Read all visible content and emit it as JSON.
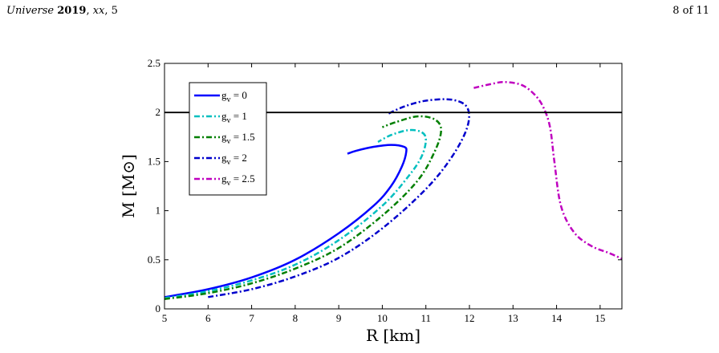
{
  "header": {
    "journal": "Universe",
    "year": "2019",
    "volume": "xx",
    "issue": "5",
    "page": "8 of 11"
  },
  "chart_data": {
    "type": "line",
    "title": "",
    "xlabel": "R [km]",
    "ylabel": "M [M⊙]",
    "xlim": [
      5,
      15.5
    ],
    "ylim": [
      0,
      2.5
    ],
    "xticks": [
      5,
      6,
      7,
      8,
      9,
      10,
      11,
      12,
      13,
      14,
      15
    ],
    "yticks": [
      0,
      0.5,
      1,
      1.5,
      2,
      2.5
    ],
    "grid": false,
    "legend_position": "top-left",
    "reference_line": {
      "y": 2,
      "color": "#000000"
    },
    "series": [
      {
        "name": "g_v = 0",
        "label_base": "g",
        "label_sub": "v",
        "label_rest": "= 0",
        "color": "#0000ff",
        "style": "solid",
        "x": [
          5.0,
          6.0,
          7.0,
          8.0,
          9.0,
          9.8,
          10.2,
          10.45,
          10.55,
          10.5,
          10.2,
          9.8,
          9.4,
          9.2
        ],
        "y": [
          0.12,
          0.2,
          0.32,
          0.5,
          0.77,
          1.05,
          1.25,
          1.45,
          1.6,
          1.65,
          1.67,
          1.65,
          1.61,
          1.58
        ]
      },
      {
        "name": "g_v = 1",
        "label_base": "g",
        "label_sub": "v",
        "label_rest": "= 1",
        "color": "#00bfbf",
        "style": "dashdot",
        "x": [
          5.0,
          6.0,
          7.0,
          8.0,
          9.0,
          10.0,
          10.6,
          10.9,
          11.0,
          10.9,
          10.6,
          10.2,
          9.9
        ],
        "y": [
          0.11,
          0.18,
          0.29,
          0.45,
          0.7,
          1.05,
          1.35,
          1.55,
          1.72,
          1.8,
          1.82,
          1.77,
          1.7
        ]
      },
      {
        "name": "g_v = 1.5",
        "label_base": "g",
        "label_sub": "v",
        "label_rest": "= 1.5",
        "color": "#007f00",
        "style": "dashdot",
        "x": [
          5.0,
          6.0,
          7.0,
          8.0,
          9.0,
          10.0,
          10.8,
          11.2,
          11.35,
          11.2,
          10.8,
          10.3,
          10.0
        ],
        "y": [
          0.1,
          0.16,
          0.26,
          0.41,
          0.62,
          0.95,
          1.3,
          1.6,
          1.82,
          1.93,
          1.96,
          1.9,
          1.85
        ]
      },
      {
        "name": "g_v = 2",
        "label_base": "g",
        "label_sub": "v",
        "label_rest": "= 2",
        "color": "#0000cc",
        "style": "dashdot",
        "x": [
          6.0,
          7.0,
          8.0,
          9.0,
          10.0,
          11.0,
          11.6,
          11.95,
          11.95,
          11.6,
          11.0,
          10.5,
          10.1
        ],
        "y": [
          0.12,
          0.2,
          0.33,
          0.52,
          0.82,
          1.22,
          1.55,
          1.85,
          2.05,
          2.13,
          2.12,
          2.06,
          1.98
        ]
      },
      {
        "name": "g_v = 2.5",
        "label_base": "g",
        "label_sub": "v",
        "label_rest": "= 2.5",
        "color": "#bf00bf",
        "style": "dashdot",
        "x": [
          12.1,
          12.5,
          12.8,
          13.2,
          13.5,
          13.7,
          13.85,
          13.95,
          14.1,
          14.4,
          14.8,
          15.2,
          15.5
        ],
        "y": [
          2.25,
          2.29,
          2.31,
          2.28,
          2.18,
          2.05,
          1.85,
          1.5,
          1.05,
          0.78,
          0.64,
          0.57,
          0.51
        ]
      }
    ]
  }
}
